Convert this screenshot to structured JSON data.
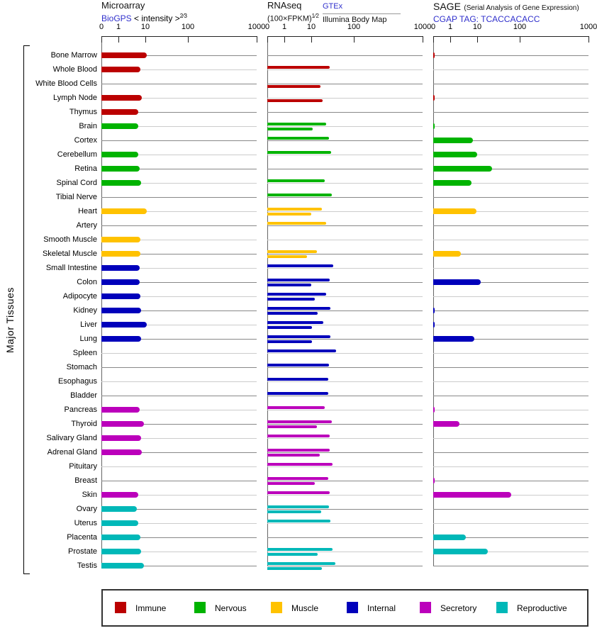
{
  "headers": {
    "microarray": {
      "title": "Microarray",
      "link": "BioGPS",
      "note": "< intensity >",
      "note_sup": "2⁄3"
    },
    "rnaseq": {
      "title": "RNAseq",
      "formula": "(100×FPKM)",
      "formula_sup": "1⁄2",
      "link": "GTEx",
      "series2": "Illumina Body Map"
    },
    "sage": {
      "title": "SAGE",
      "note": "(Serial Analysis of Gene Expression)",
      "link": "CGAP TAG: TCACCACACC"
    }
  },
  "chart_data": {
    "type": "bar",
    "orientation": "horizontal",
    "xscale": "compressed-log (ticks 0,1,10,100,1000; decade widths grow)",
    "axis_ticks": [
      0,
      1,
      10,
      100,
      1000
    ],
    "ylabel": "Major Tissues",
    "panels": [
      {
        "name": "Microarray",
        "sources": [
          "BioGPS"
        ],
        "value_keys": [
          "microarray"
        ],
        "bar_style": "thick"
      },
      {
        "name": "RNAseq",
        "sources": [
          "GTEx",
          "Illumina Body Map"
        ],
        "value_keys": [
          "gtex",
          "illumina"
        ],
        "bar_style": "thin"
      },
      {
        "name": "SAGE",
        "sources": [
          "CGAP TAG: TCACCACACC"
        ],
        "value_keys": [
          "sage"
        ],
        "bar_style": "thick"
      }
    ],
    "categories": [
      {
        "name": "Immune",
        "color": "#bb0000"
      },
      {
        "name": "Nervous",
        "color": "#00b300"
      },
      {
        "name": "Muscle",
        "color": "#ffc200"
      },
      {
        "name": "Internal",
        "color": "#0000bb"
      },
      {
        "name": "Secretory",
        "color": "#bb00bb"
      },
      {
        "name": "Reproductive",
        "color": "#00b8b8"
      }
    ],
    "tissues": [
      {
        "name": "Bone Marrow",
        "category": "Immune",
        "values": {
          "microarray": 11,
          "gtex": null,
          "illumina": null,
          "sage": 0.1
        }
      },
      {
        "name": "Whole Blood",
        "category": "Immune",
        "values": {
          "microarray": 6.5,
          "gtex": 27,
          "illumina": null,
          "sage": null
        }
      },
      {
        "name": "White Blood Cells",
        "category": "Immune",
        "values": {
          "microarray": null,
          "gtex": null,
          "illumina": 16.5,
          "sage": null
        }
      },
      {
        "name": "Lymph Node",
        "category": "Immune",
        "values": {
          "microarray": 7.4,
          "gtex": null,
          "illumina": 18.5,
          "sage": 0.1
        }
      },
      {
        "name": "Thymus",
        "category": "Immune",
        "values": {
          "microarray": 5.5,
          "gtex": null,
          "illumina": null,
          "sage": null
        }
      },
      {
        "name": "Brain",
        "category": "Nervous",
        "values": {
          "microarray": 5.5,
          "gtex": 22,
          "illumina": 11,
          "sage": 0.1
        }
      },
      {
        "name": "Cortex",
        "category": "Nervous",
        "values": {
          "microarray": null,
          "gtex": 26,
          "illumina": null,
          "sage": 7
        }
      },
      {
        "name": "Cerebellum",
        "category": "Nervous",
        "values": {
          "microarray": 5.5,
          "gtex": 29,
          "illumina": null,
          "sage": 10
        }
      },
      {
        "name": "Retina",
        "category": "Nervous",
        "values": {
          "microarray": 6.2,
          "gtex": null,
          "illumina": null,
          "sage": 22
        }
      },
      {
        "name": "Spinal Cord",
        "category": "Nervous",
        "values": {
          "microarray": 7,
          "gtex": 21,
          "illumina": null,
          "sage": 6.2
        }
      },
      {
        "name": "Tibial Nerve",
        "category": "Nervous",
        "values": {
          "microarray": null,
          "gtex": 31,
          "illumina": null,
          "sage": null
        }
      },
      {
        "name": "Heart",
        "category": "Muscle",
        "values": {
          "microarray": 11,
          "gtex": 18,
          "illumina": 10,
          "sage": 9.3
        }
      },
      {
        "name": "Artery",
        "category": "Muscle",
        "values": {
          "microarray": null,
          "gtex": 22,
          "illumina": null,
          "sage": null
        }
      },
      {
        "name": "Smooth Muscle",
        "category": "Muscle",
        "values": {
          "microarray": 6.5,
          "gtex": null,
          "illumina": null,
          "sage": null
        }
      },
      {
        "name": "Skeletal Muscle",
        "category": "Muscle",
        "values": {
          "microarray": 6.5,
          "gtex": 13.5,
          "illumina": 7,
          "sage": 2.5
        }
      },
      {
        "name": "Small Intestine",
        "category": "Internal",
        "values": {
          "microarray": 6.2,
          "gtex": 32.5,
          "illumina": null,
          "sage": null
        }
      },
      {
        "name": "Colon",
        "category": "Internal",
        "values": {
          "microarray": 6.2,
          "gtex": 27,
          "illumina": 10,
          "sage": 12
        }
      },
      {
        "name": "Adipocyte",
        "category": "Internal",
        "values": {
          "microarray": 6.5,
          "gtex": 22,
          "illumina": 12,
          "sage": null
        }
      },
      {
        "name": "Kidney",
        "category": "Internal",
        "values": {
          "microarray": 7,
          "gtex": 28,
          "illumina": 14,
          "sage": 0.1
        }
      },
      {
        "name": "Liver",
        "category": "Internal",
        "values": {
          "microarray": 11,
          "gtex": 19,
          "illumina": 10.5,
          "sage": 0.1
        }
      },
      {
        "name": "Lung",
        "category": "Internal",
        "values": {
          "microarray": 7,
          "gtex": 28,
          "illumina": 10.5,
          "sage": 8
        }
      },
      {
        "name": "Spleen",
        "category": "Internal",
        "values": {
          "microarray": null,
          "gtex": 38,
          "illumina": null,
          "sage": null
        }
      },
      {
        "name": "Stomach",
        "category": "Internal",
        "values": {
          "microarray": null,
          "gtex": 26,
          "illumina": null,
          "sage": null
        }
      },
      {
        "name": "Esophagus",
        "category": "Internal",
        "values": {
          "microarray": null,
          "gtex": 25,
          "illumina": null,
          "sage": null
        }
      },
      {
        "name": "Bladder",
        "category": "Internal",
        "values": {
          "microarray": null,
          "gtex": 25,
          "illumina": null,
          "sage": null
        }
      },
      {
        "name": "Pancreas",
        "category": "Secretory",
        "values": {
          "microarray": 6.2,
          "gtex": 21,
          "illumina": null,
          "sage": 0.1
        }
      },
      {
        "name": "Thyroid",
        "category": "Secretory",
        "values": {
          "microarray": 8.9,
          "gtex": 31,
          "illumina": 13.5,
          "sage": 2.2
        }
      },
      {
        "name": "Salivary Gland",
        "category": "Secretory",
        "values": {
          "microarray": 7,
          "gtex": 27,
          "illumina": null,
          "sage": null
        }
      },
      {
        "name": "Adrenal Gland",
        "category": "Secretory",
        "values": {
          "microarray": 7.4,
          "gtex": 27,
          "illumina": 16,
          "sage": null
        }
      },
      {
        "name": "Pituitary",
        "category": "Secretory",
        "values": {
          "microarray": null,
          "gtex": 32,
          "illumina": null,
          "sage": null
        }
      },
      {
        "name": "Breast",
        "category": "Secretory",
        "values": {
          "microarray": null,
          "gtex": 25,
          "illumina": 12,
          "sage": 0.1
        }
      },
      {
        "name": "Skin",
        "category": "Secretory",
        "values": {
          "microarray": 5.5,
          "gtex": 27,
          "illumina": null,
          "sage": 63
        }
      },
      {
        "name": "Ovary",
        "category": "Reproductive",
        "values": {
          "microarray": 4.8,
          "gtex": 26,
          "illumina": 17,
          "sage": null
        }
      },
      {
        "name": "Uterus",
        "category": "Reproductive",
        "values": {
          "microarray": 5.5,
          "gtex": 28,
          "illumina": null,
          "sage": null
        }
      },
      {
        "name": "Placenta",
        "category": "Reproductive",
        "values": {
          "microarray": 6.5,
          "gtex": null,
          "illumina": null,
          "sage": 3.8
        }
      },
      {
        "name": "Prostate",
        "category": "Reproductive",
        "values": {
          "microarray": 7,
          "gtex": 32,
          "illumina": 14,
          "sage": 17.5
        }
      },
      {
        "name": "Testis",
        "category": "Reproductive",
        "values": {
          "microarray": 8.9,
          "gtex": 37,
          "illumina": 18,
          "sage": null
        }
      }
    ]
  }
}
